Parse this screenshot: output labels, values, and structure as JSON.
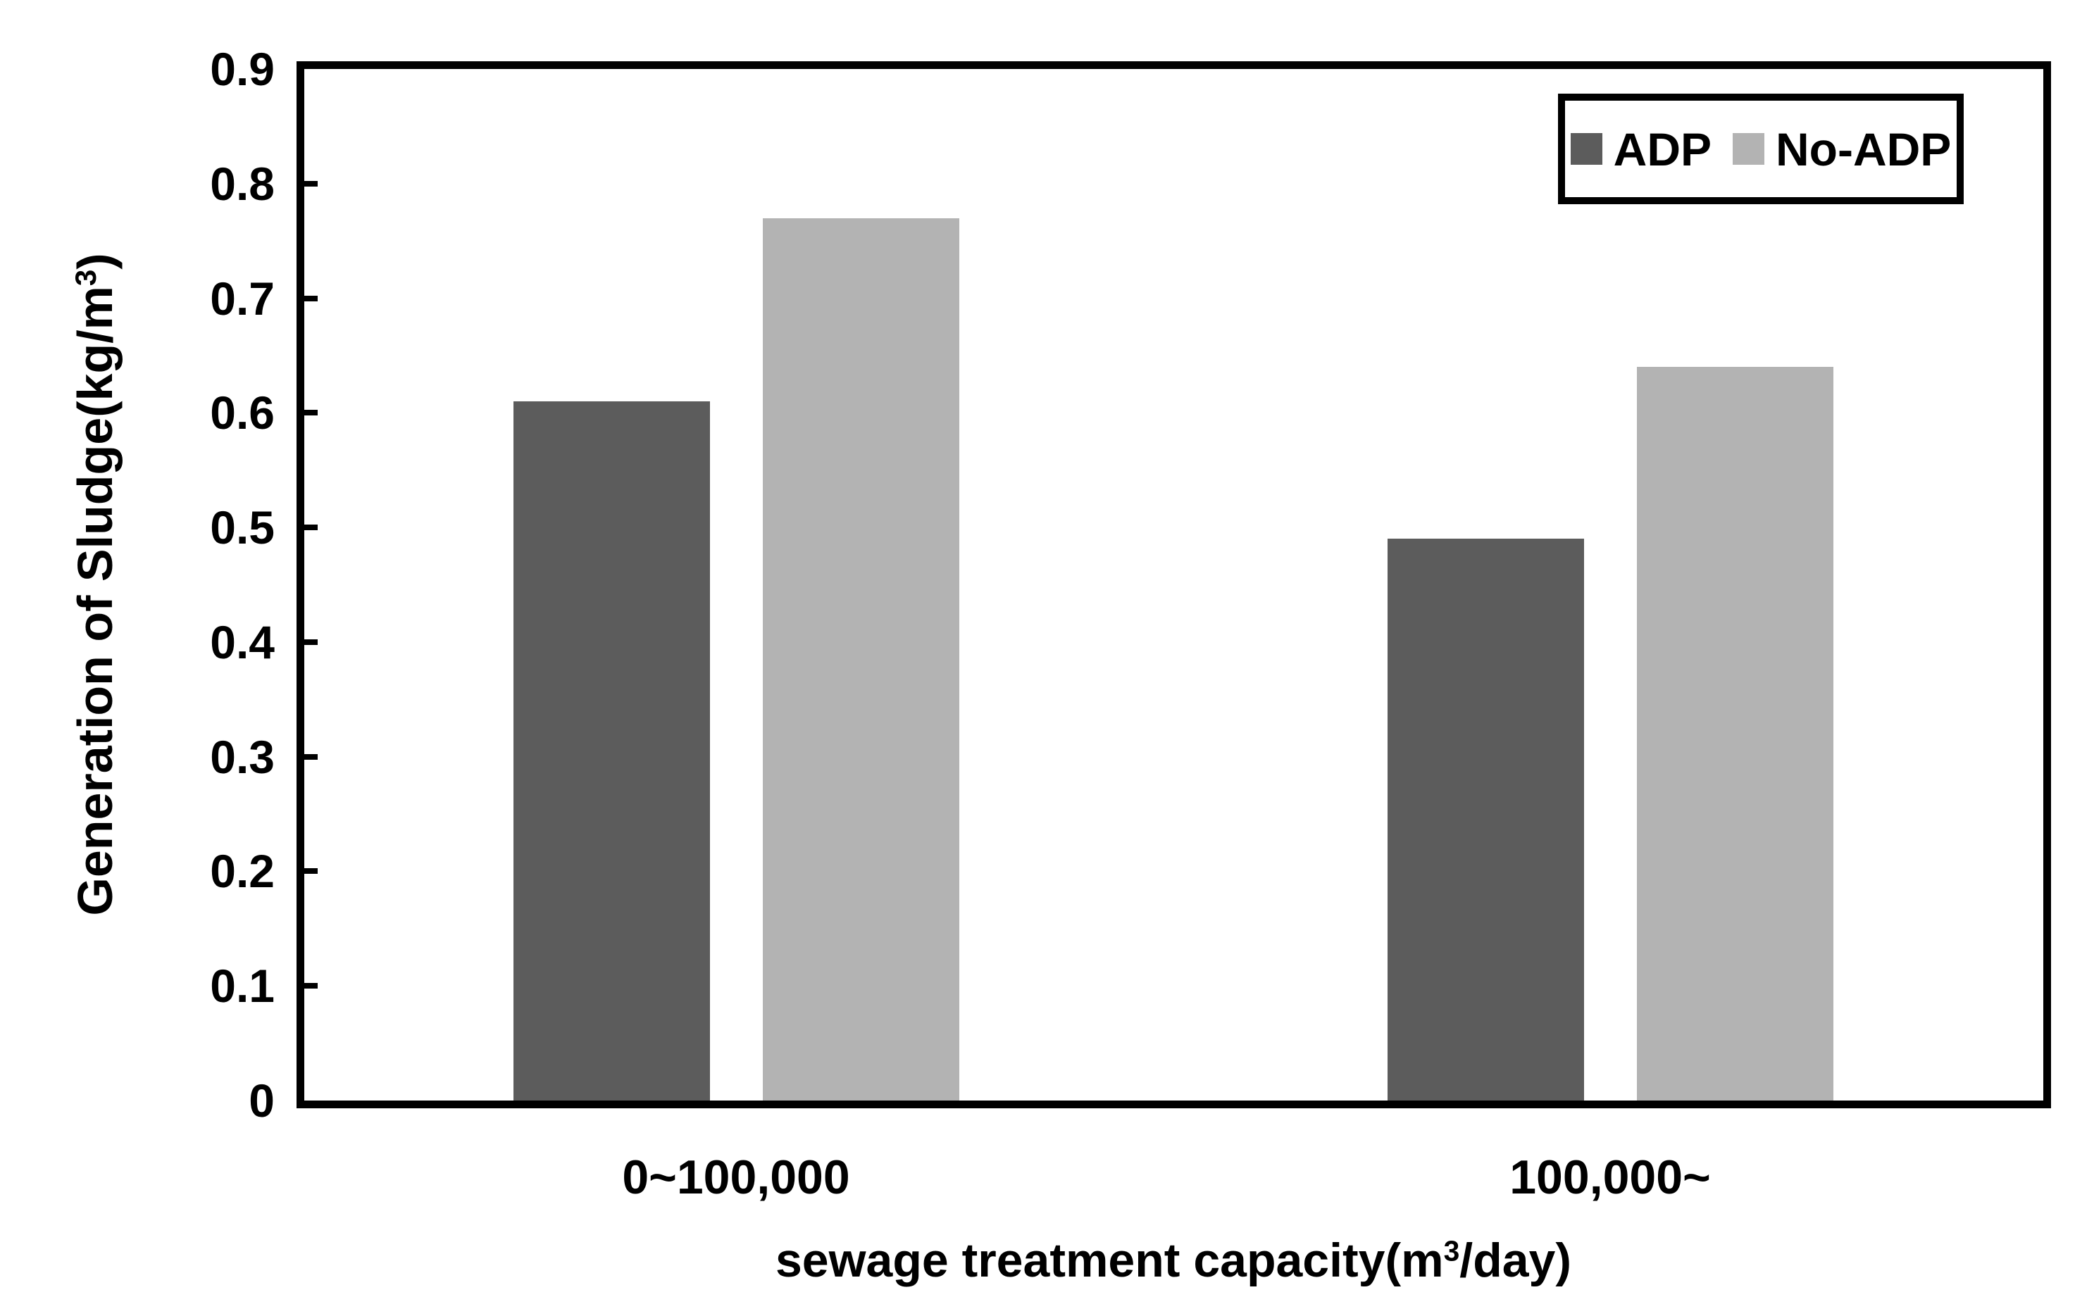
{
  "chart_data": {
    "type": "bar",
    "title": "",
    "categories": [
      "0~100,000",
      "100,000~"
    ],
    "series": [
      {
        "name": "ADP",
        "color": "#5c5c5c",
        "values": [
          0.61,
          0.49
        ]
      },
      {
        "name": "No-ADP",
        "color": "#b3b3b3",
        "values": [
          0.77,
          0.64
        ]
      }
    ],
    "xlabel": "sewage treatment capacity(m³/day)",
    "ylabel": "Generation of Sludge(kg/m³)",
    "ylim": [
      0,
      0.9
    ],
    "yticks": [
      "0",
      "0.1",
      "0.2",
      "0.3",
      "0.4",
      "0.5",
      "0.6",
      "0.7",
      "0.8",
      "0.9"
    ],
    "grid": false,
    "legend_position": "top-right",
    "frame_color": "#000000",
    "background_color": "#ffffff"
  },
  "ylabel_parts": {
    "pre": "Generation of Sludge(kg/m",
    "sup": "3",
    "post": ")"
  },
  "xlabel_parts": {
    "pre": "sewage treatment capacity(m",
    "sup": "3",
    "post": "/day)"
  }
}
